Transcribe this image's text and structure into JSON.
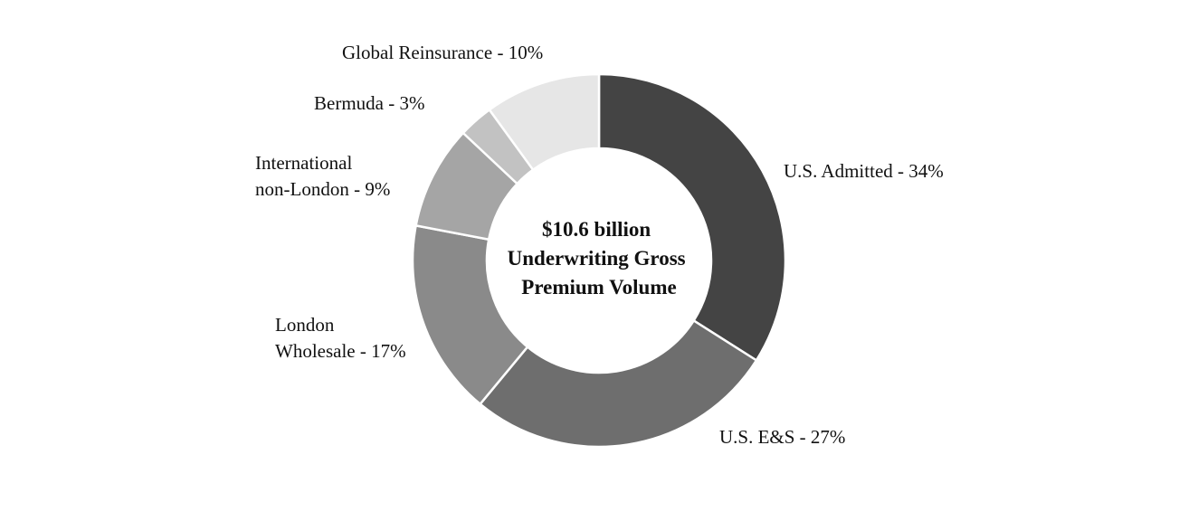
{
  "chart_data": {
    "type": "pie",
    "variant": "donut",
    "center_text": [
      "$10.6 billion",
      "Underwriting Gross",
      "Premium Volume"
    ],
    "slices": [
      {
        "label": "U.S. Admitted - 34%",
        "value": 34,
        "color": "#444444"
      },
      {
        "label": "U.S. E&S - 27%",
        "value": 27,
        "color": "#6e6e6e"
      },
      {
        "label": "London Wholesale - 17%",
        "value": 17,
        "color": "#8a8a8a"
      },
      {
        "label": "International non-London - 9%",
        "value": 9,
        "color": "#a5a5a5"
      },
      {
        "label": "Bermuda - 3%",
        "value": 3,
        "color": "#c2c2c2"
      },
      {
        "label": "Global Reinsurance - 10%",
        "value": 10,
        "color": "#e6e6e6"
      }
    ],
    "start": "top",
    "direction": "clockwise",
    "legend": "none"
  }
}
